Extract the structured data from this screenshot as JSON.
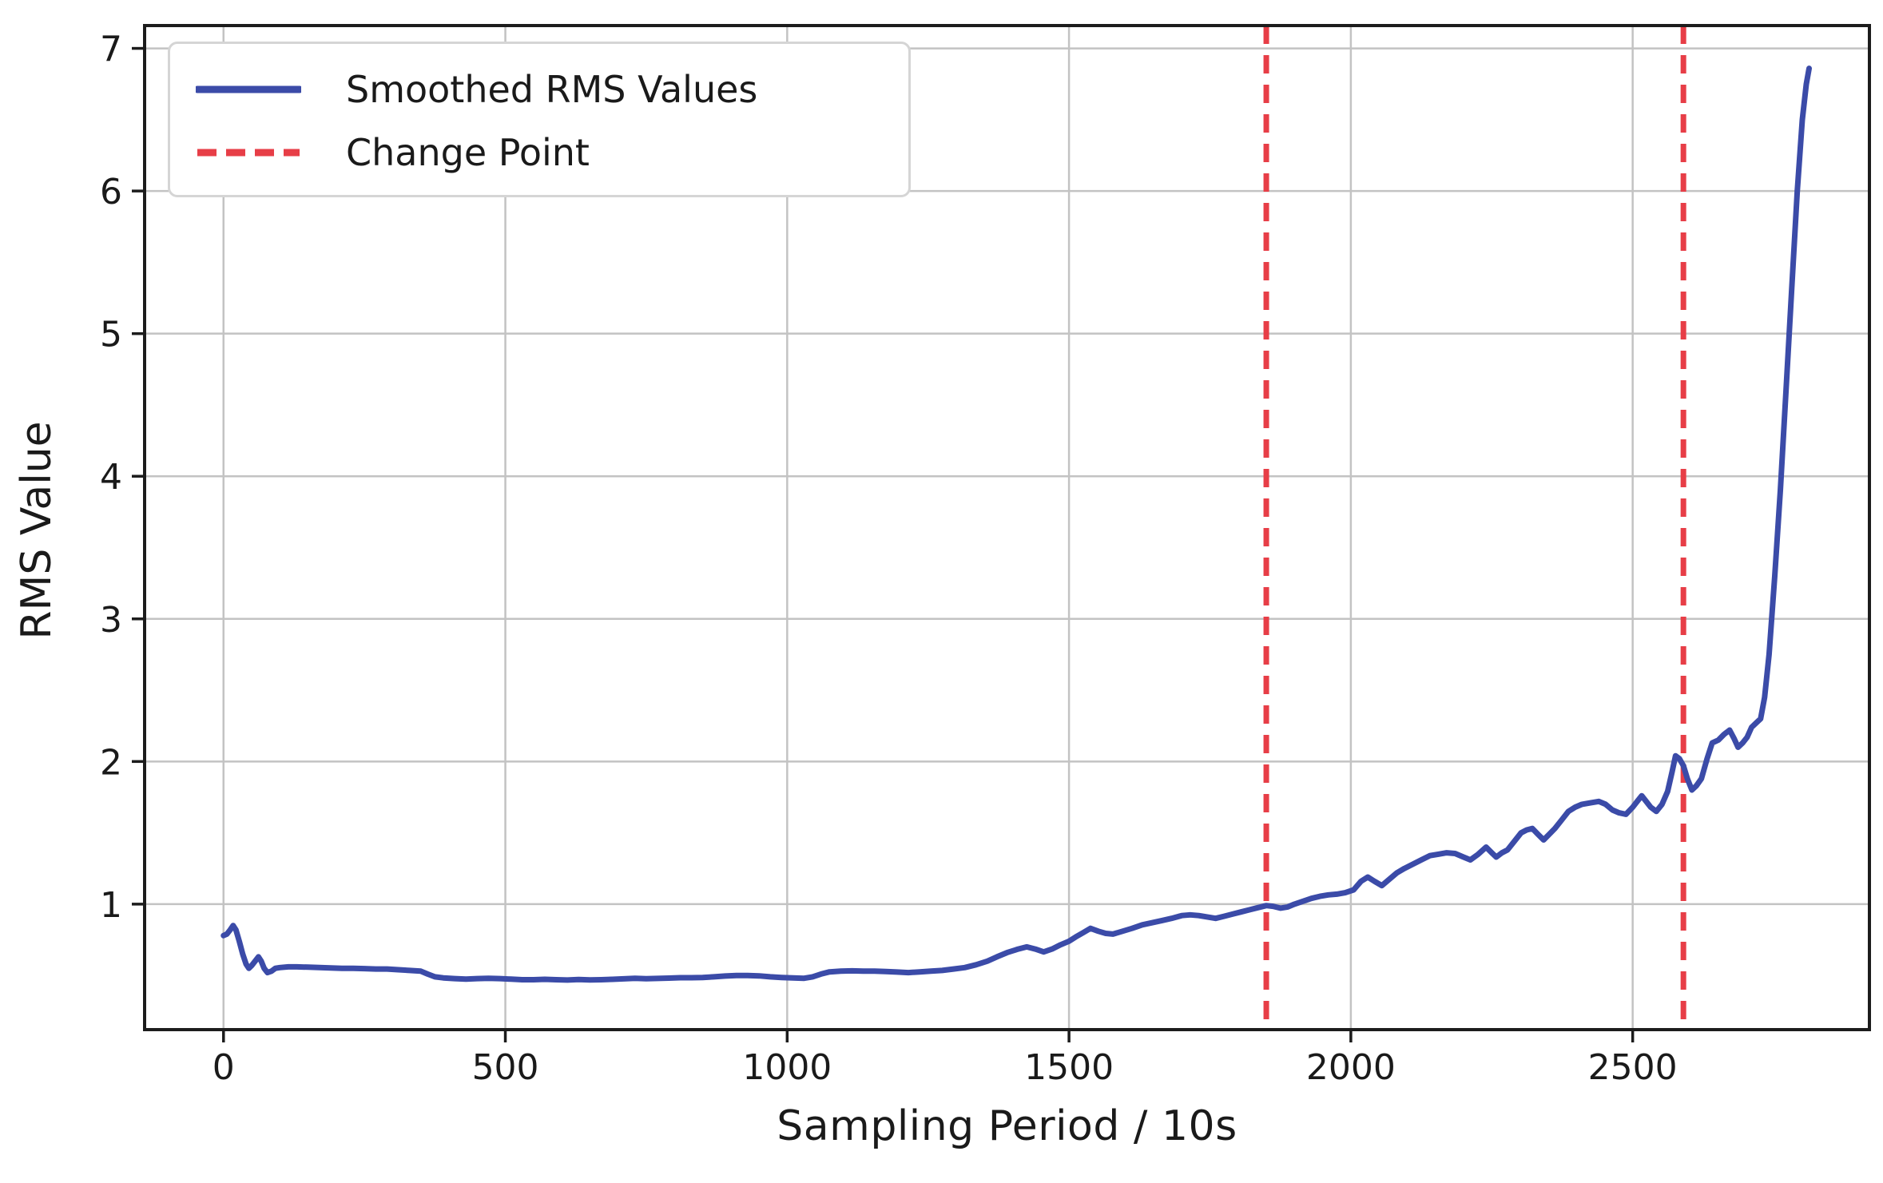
{
  "figure": {
    "xlabel": "Sampling Period / 10s",
    "ylabel": "RMS Value"
  },
  "legend": {
    "items": [
      {
        "label": "Smoothed RMS Values",
        "style": "solid",
        "color": "#3b4ba8"
      },
      {
        "label": "Change Point",
        "style": "dashed",
        "color": "#e73e47"
      }
    ]
  },
  "colors": {
    "series_line": "#3b4ba8",
    "change_point_line": "#e73e47",
    "grid_line": "#c3c3c3",
    "spine": "#1c1c1c",
    "text": "#1a1a1a",
    "background": "#ffffff"
  },
  "chart_data": {
    "type": "line",
    "title": "",
    "xlabel": "Sampling Period / 10s",
    "ylabel": "RMS Value",
    "x_ticks": [
      0,
      500,
      1000,
      1500,
      2000,
      2500
    ],
    "y_ticks": [
      1,
      2,
      3,
      4,
      5,
      6,
      7
    ],
    "xlim": [
      -140,
      2920
    ],
    "ylim": [
      0.12,
      7.16
    ],
    "grid": true,
    "legend_position": "upper left",
    "series": [
      {
        "name": "Smoothed RMS Values",
        "color": "#3b4ba8",
        "points": [
          [
            0,
            0.78
          ],
          [
            6,
            0.79
          ],
          [
            12,
            0.82
          ],
          [
            17,
            0.85
          ],
          [
            22,
            0.82
          ],
          [
            28,
            0.74
          ],
          [
            34,
            0.65
          ],
          [
            40,
            0.58
          ],
          [
            45,
            0.55
          ],
          [
            50,
            0.57
          ],
          [
            56,
            0.6
          ],
          [
            62,
            0.63
          ],
          [
            67,
            0.6
          ],
          [
            72,
            0.55
          ],
          [
            78,
            0.52
          ],
          [
            85,
            0.53
          ],
          [
            92,
            0.55
          ],
          [
            100,
            0.555
          ],
          [
            115,
            0.56
          ],
          [
            130,
            0.56
          ],
          [
            150,
            0.558
          ],
          [
            170,
            0.556
          ],
          [
            190,
            0.553
          ],
          [
            210,
            0.55
          ],
          [
            230,
            0.55
          ],
          [
            250,
            0.548
          ],
          [
            270,
            0.545
          ],
          [
            290,
            0.545
          ],
          [
            310,
            0.54
          ],
          [
            330,
            0.535
          ],
          [
            350,
            0.53
          ],
          [
            362,
            0.51
          ],
          [
            375,
            0.49
          ],
          [
            390,
            0.483
          ],
          [
            410,
            0.478
          ],
          [
            430,
            0.474
          ],
          [
            450,
            0.478
          ],
          [
            470,
            0.48
          ],
          [
            490,
            0.478
          ],
          [
            510,
            0.474
          ],
          [
            530,
            0.47
          ],
          [
            550,
            0.47
          ],
          [
            570,
            0.473
          ],
          [
            590,
            0.47
          ],
          [
            610,
            0.468
          ],
          [
            630,
            0.472
          ],
          [
            650,
            0.469
          ],
          [
            670,
            0.47
          ],
          [
            690,
            0.473
          ],
          [
            710,
            0.476
          ],
          [
            730,
            0.48
          ],
          [
            750,
            0.477
          ],
          [
            770,
            0.479
          ],
          [
            790,
            0.481
          ],
          [
            810,
            0.484
          ],
          [
            830,
            0.484
          ],
          [
            850,
            0.486
          ],
          [
            870,
            0.49
          ],
          [
            890,
            0.496
          ],
          [
            910,
            0.5
          ],
          [
            930,
            0.5
          ],
          [
            950,
            0.497
          ],
          [
            970,
            0.49
          ],
          [
            990,
            0.486
          ],
          [
            1010,
            0.483
          ],
          [
            1030,
            0.48
          ],
          [
            1045,
            0.49
          ],
          [
            1060,
            0.51
          ],
          [
            1075,
            0.525
          ],
          [
            1095,
            0.53
          ],
          [
            1115,
            0.532
          ],
          [
            1135,
            0.53
          ],
          [
            1155,
            0.53
          ],
          [
            1175,
            0.528
          ],
          [
            1195,
            0.524
          ],
          [
            1215,
            0.52
          ],
          [
            1235,
            0.525
          ],
          [
            1255,
            0.53
          ],
          [
            1275,
            0.535
          ],
          [
            1295,
            0.545
          ],
          [
            1315,
            0.555
          ],
          [
            1335,
            0.575
          ],
          [
            1355,
            0.6
          ],
          [
            1372,
            0.63
          ],
          [
            1390,
            0.66
          ],
          [
            1410,
            0.685
          ],
          [
            1425,
            0.7
          ],
          [
            1440,
            0.685
          ],
          [
            1455,
            0.665
          ],
          [
            1470,
            0.685
          ],
          [
            1485,
            0.715
          ],
          [
            1500,
            0.74
          ],
          [
            1512,
            0.77
          ],
          [
            1525,
            0.8
          ],
          [
            1538,
            0.83
          ],
          [
            1552,
            0.81
          ],
          [
            1565,
            0.795
          ],
          [
            1578,
            0.79
          ],
          [
            1595,
            0.81
          ],
          [
            1612,
            0.83
          ],
          [
            1630,
            0.855
          ],
          [
            1648,
            0.87
          ],
          [
            1665,
            0.885
          ],
          [
            1682,
            0.9
          ],
          [
            1700,
            0.92
          ],
          [
            1715,
            0.925
          ],
          [
            1730,
            0.92
          ],
          [
            1745,
            0.91
          ],
          [
            1760,
            0.9
          ],
          [
            1775,
            0.915
          ],
          [
            1790,
            0.93
          ],
          [
            1805,
            0.945
          ],
          [
            1820,
            0.96
          ],
          [
            1835,
            0.975
          ],
          [
            1850,
            0.99
          ],
          [
            1862,
            0.985
          ],
          [
            1875,
            0.972
          ],
          [
            1888,
            0.98
          ],
          [
            1900,
            1.0
          ],
          [
            1915,
            1.02
          ],
          [
            1930,
            1.04
          ],
          [
            1945,
            1.055
          ],
          [
            1960,
            1.065
          ],
          [
            1975,
            1.07
          ],
          [
            1990,
            1.08
          ],
          [
            2005,
            1.1
          ],
          [
            2018,
            1.16
          ],
          [
            2030,
            1.19
          ],
          [
            2042,
            1.16
          ],
          [
            2055,
            1.13
          ],
          [
            2070,
            1.18
          ],
          [
            2082,
            1.22
          ],
          [
            2095,
            1.25
          ],
          [
            2110,
            1.28
          ],
          [
            2125,
            1.31
          ],
          [
            2140,
            1.34
          ],
          [
            2155,
            1.35
          ],
          [
            2170,
            1.36
          ],
          [
            2185,
            1.355
          ],
          [
            2200,
            1.33
          ],
          [
            2212,
            1.31
          ],
          [
            2226,
            1.35
          ],
          [
            2240,
            1.4
          ],
          [
            2250,
            1.36
          ],
          [
            2258,
            1.33
          ],
          [
            2268,
            1.36
          ],
          [
            2278,
            1.38
          ],
          [
            2290,
            1.44
          ],
          [
            2302,
            1.5
          ],
          [
            2312,
            1.52
          ],
          [
            2322,
            1.53
          ],
          [
            2332,
            1.49
          ],
          [
            2342,
            1.45
          ],
          [
            2352,
            1.49
          ],
          [
            2362,
            1.53
          ],
          [
            2374,
            1.59
          ],
          [
            2386,
            1.65
          ],
          [
            2398,
            1.68
          ],
          [
            2410,
            1.7
          ],
          [
            2425,
            1.71
          ],
          [
            2440,
            1.72
          ],
          [
            2452,
            1.7
          ],
          [
            2464,
            1.66
          ],
          [
            2476,
            1.64
          ],
          [
            2488,
            1.63
          ],
          [
            2500,
            1.68
          ],
          [
            2508,
            1.72
          ],
          [
            2516,
            1.76
          ],
          [
            2524,
            1.72
          ],
          [
            2532,
            1.68
          ],
          [
            2542,
            1.65
          ],
          [
            2552,
            1.7
          ],
          [
            2562,
            1.79
          ],
          [
            2570,
            1.93
          ],
          [
            2576,
            2.04
          ],
          [
            2583,
            2.02
          ],
          [
            2590,
            1.97
          ],
          [
            2597,
            1.88
          ],
          [
            2605,
            1.8
          ],
          [
            2613,
            1.83
          ],
          [
            2622,
            1.88
          ],
          [
            2632,
            2.02
          ],
          [
            2641,
            2.13
          ],
          [
            2652,
            2.15
          ],
          [
            2662,
            2.19
          ],
          [
            2672,
            2.22
          ],
          [
            2680,
            2.16
          ],
          [
            2687,
            2.1
          ],
          [
            2695,
            2.13
          ],
          [
            2703,
            2.17
          ],
          [
            2711,
            2.24
          ],
          [
            2719,
            2.27
          ],
          [
            2727,
            2.3
          ],
          [
            2734,
            2.45
          ],
          [
            2742,
            2.75
          ],
          [
            2752,
            3.3
          ],
          [
            2762,
            3.9
          ],
          [
            2772,
            4.6
          ],
          [
            2782,
            5.3
          ],
          [
            2792,
            6.0
          ],
          [
            2801,
            6.5
          ],
          [
            2808,
            6.75
          ],
          [
            2813,
            6.86
          ]
        ]
      }
    ],
    "change_points": {
      "name": "Change Point",
      "color": "#e73e47",
      "x": [
        1850,
        2590
      ]
    }
  }
}
